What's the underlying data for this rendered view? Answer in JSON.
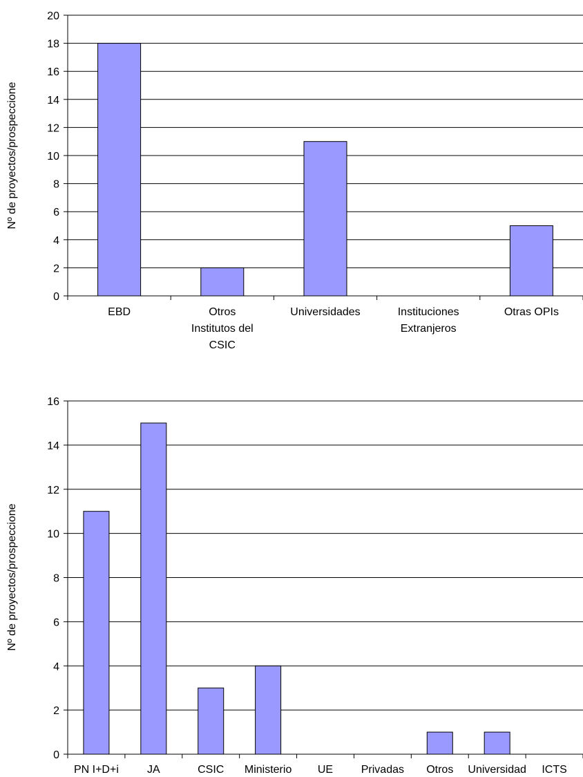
{
  "chart_data": [
    {
      "type": "bar",
      "ylabel": "Nº de proyectos/prospeccione",
      "ylim": [
        0,
        20
      ],
      "yticks": [
        0,
        2,
        4,
        6,
        8,
        10,
        12,
        14,
        16,
        18,
        20
      ],
      "grid": true,
      "categories": [
        [
          "EBD"
        ],
        [
          "Otros",
          "Institutos del",
          "CSIC"
        ],
        [
          "Universidades"
        ],
        [
          "Instituciones",
          "Extranjeros"
        ],
        [
          "Otras OPIs"
        ]
      ],
      "values": [
        18,
        2,
        11,
        0,
        5
      ],
      "bar_color": "#9999ff"
    },
    {
      "type": "bar",
      "ylabel": "Nº de proyectos/prospeccione",
      "ylim": [
        0,
        16
      ],
      "yticks": [
        0,
        2,
        4,
        6,
        8,
        10,
        12,
        14,
        16
      ],
      "grid": true,
      "categories": [
        [
          "PN I+D+i"
        ],
        [
          "JA"
        ],
        [
          "CSIC"
        ],
        [
          "Ministerio"
        ],
        [
          "UE"
        ],
        [
          "Privadas"
        ],
        [
          "Otros"
        ],
        [
          "Universidad"
        ],
        [
          "ICTS"
        ]
      ],
      "values": [
        11,
        15,
        3,
        4,
        0,
        0,
        1,
        1,
        0
      ],
      "bar_color": "#9999ff"
    }
  ]
}
